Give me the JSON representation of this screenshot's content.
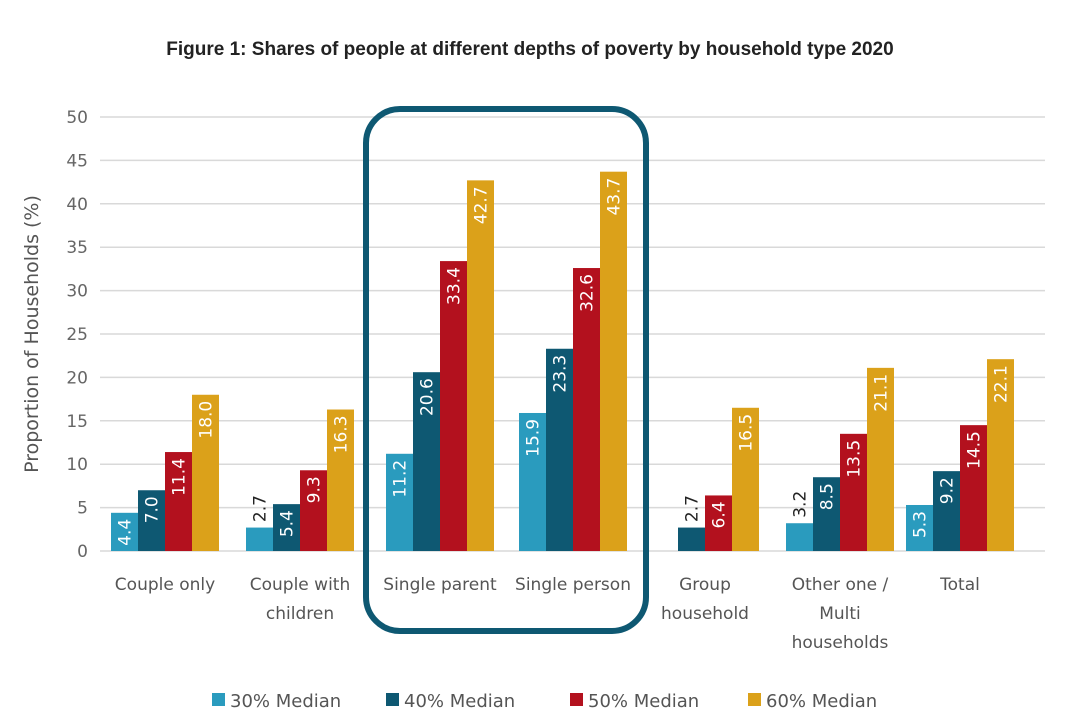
{
  "chart_data": {
    "type": "bar",
    "title": "Figure 1:  Shares of people at different depths of poverty by household type 2020",
    "xlabel": "",
    "ylabel": "Proportion of Households (%)",
    "ylim": [
      0,
      50
    ],
    "yticks": [
      0,
      5,
      10,
      15,
      20,
      25,
      30,
      35,
      40,
      45,
      50
    ],
    "grid": true,
    "legend_position": "bottom",
    "categories": [
      [
        "Couple only"
      ],
      [
        "Couple with",
        "children"
      ],
      [
        "Single parent"
      ],
      [
        "Single person"
      ],
      [
        "Group",
        "household"
      ],
      [
        "Other one /",
        "Multi",
        "households"
      ],
      [
        "Total"
      ]
    ],
    "series": [
      {
        "name": "30% Median",
        "color": "#2A9BBE",
        "values": [
          4.4,
          2.7,
          11.2,
          15.9,
          null,
          3.2,
          5.3
        ]
      },
      {
        "name": "40% Median",
        "color": "#0E5872",
        "values": [
          7.0,
          5.4,
          20.6,
          23.3,
          2.7,
          8.5,
          9.2
        ]
      },
      {
        "name": "50% Median",
        "color": "#B3111E",
        "values": [
          11.4,
          9.3,
          33.4,
          32.6,
          6.4,
          13.5,
          14.5
        ]
      },
      {
        "name": "60% Median",
        "color": "#DBA11A",
        "values": [
          18.0,
          16.3,
          42.7,
          43.7,
          16.5,
          21.1,
          22.1
        ]
      }
    ],
    "annotations": [
      {
        "type": "highlight-box",
        "covers": [
          "Single parent",
          "Single person"
        ],
        "color": "#0E5872"
      }
    ]
  }
}
